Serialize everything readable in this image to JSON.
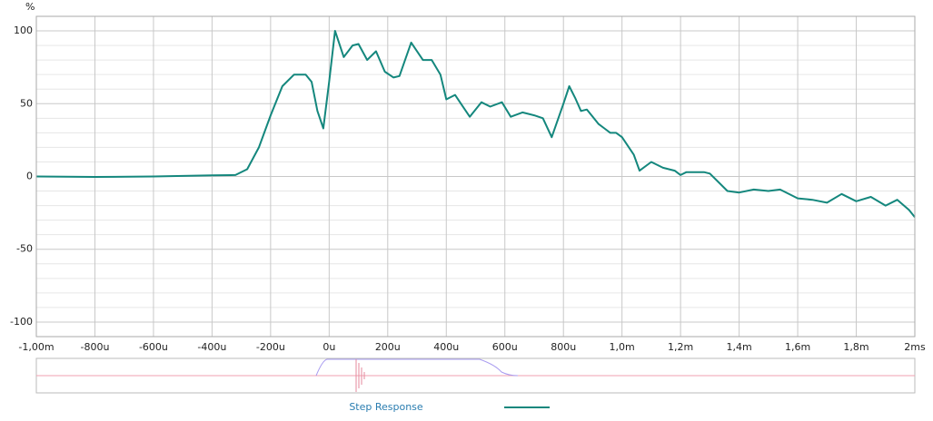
{
  "chart_data": {
    "type": "line",
    "y_unit": "%",
    "xlim": [
      -1000,
      2000
    ],
    "xticks": [
      {
        "value": -1000,
        "label": "-1,00m"
      },
      {
        "value": -800,
        "label": "-800u"
      },
      {
        "value": -600,
        "label": "-600u"
      },
      {
        "value": -400,
        "label": "-400u"
      },
      {
        "value": -200,
        "label": "-200u"
      },
      {
        "value": 0,
        "label": "0u"
      },
      {
        "value": 200,
        "label": "200u"
      },
      {
        "value": 400,
        "label": "400u"
      },
      {
        "value": 600,
        "label": "600u"
      },
      {
        "value": 800,
        "label": "800u"
      },
      {
        "value": 1000,
        "label": "1,0m"
      },
      {
        "value": 1200,
        "label": "1,2m"
      },
      {
        "value": 1400,
        "label": "1,4m"
      },
      {
        "value": 1600,
        "label": "1,6m"
      },
      {
        "value": 1800,
        "label": "1,8m"
      },
      {
        "value": 2000,
        "label": "2ms"
      }
    ],
    "ylim": [
      -110,
      110
    ],
    "yticks": [
      -100,
      -50,
      0,
      50,
      100
    ],
    "grid": true,
    "x": [
      -1000,
      -800,
      -600,
      -400,
      -320,
      -280,
      -240,
      -200,
      -160,
      -120,
      -80,
      -60,
      -40,
      -20,
      0,
      20,
      50,
      80,
      100,
      130,
      160,
      190,
      220,
      240,
      280,
      320,
      350,
      380,
      400,
      430,
      450,
      480,
      520,
      550,
      590,
      620,
      660,
      700,
      730,
      760,
      800,
      820,
      840,
      860,
      880,
      920,
      940,
      960,
      980,
      1000,
      1040,
      1060,
      1100,
      1140,
      1180,
      1200,
      1220,
      1260,
      1280,
      1300,
      1360,
      1400,
      1450,
      1500,
      1540,
      1600,
      1650,
      1700,
      1750,
      1800,
      1850,
      1900,
      1940,
      1980,
      2000
    ],
    "series": [
      {
        "name": "Step Response",
        "color": "#14877d",
        "values": [
          0,
          -0.3,
          0,
          0.8,
          1,
          5,
          20,
          42,
          62,
          70,
          70,
          65,
          45,
          33,
          65,
          100,
          82,
          90,
          91,
          80,
          86,
          72,
          68,
          69,
          92,
          80,
          80,
          70,
          53,
          56,
          50,
          41,
          51,
          48,
          51,
          41,
          44,
          42,
          40,
          27,
          50,
          62,
          54,
          45,
          46,
          36,
          33,
          30,
          30,
          27,
          15,
          4,
          10,
          6,
          4,
          1,
          3,
          3,
          3,
          2,
          -10,
          -11,
          -9,
          -10,
          -9,
          -15,
          -16,
          -18,
          -12,
          -17,
          -14,
          -20,
          -16,
          -23,
          -28
        ]
      }
    ]
  }
}
